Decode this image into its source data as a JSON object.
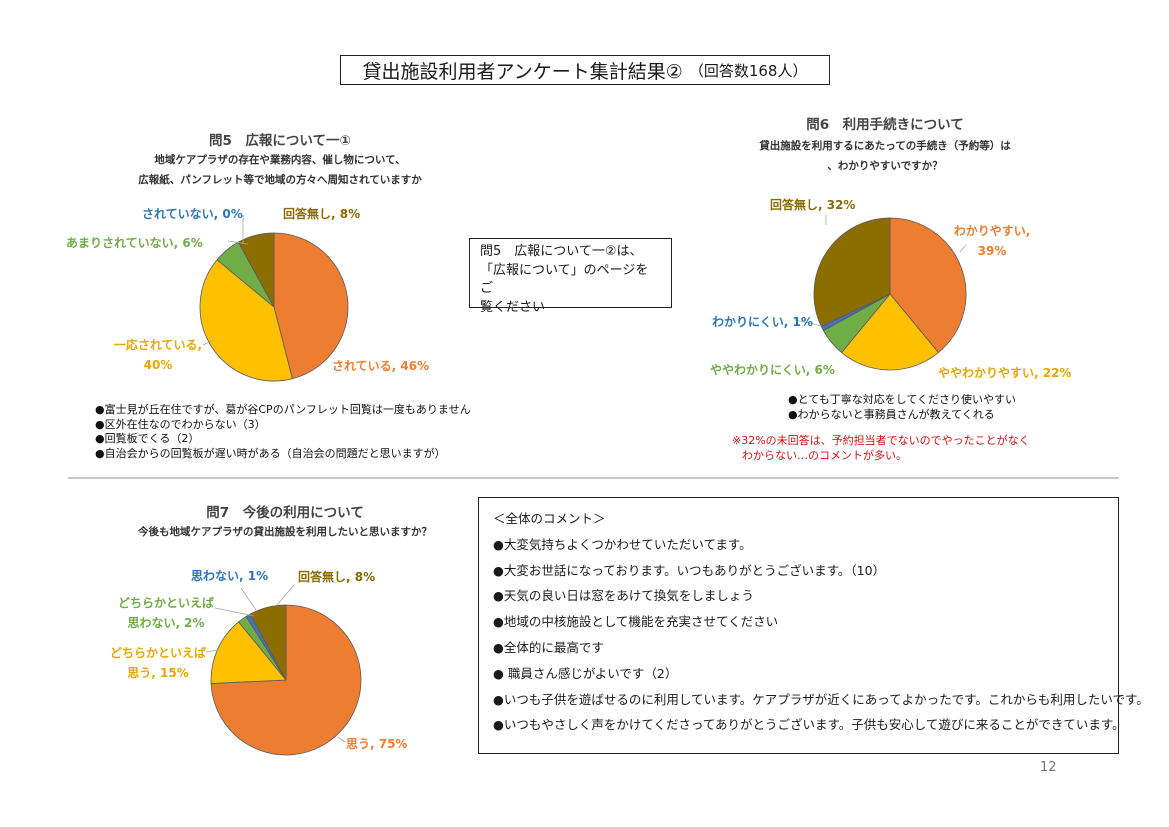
{
  "title": {
    "main": "貸出施設利用者アンケート集計結果②",
    "sub": "（回答数168人）"
  },
  "q5": {
    "title": "問5　広報について一①",
    "desc": [
      "地域ケアプラザの存在や業務内容、催し物について、",
      "広報紙、パンフレット等で地域の方々へ周知されていますか"
    ],
    "labels": {
      "l0": "されている, 46%",
      "l1a": "一応されている,",
      "l1b": "40%",
      "l2": "あまりされていない, 6%",
      "l3": "されていない, 0%",
      "l4": "回答無し, 8%"
    },
    "bullets": [
      "●富士見が丘在住ですが、葛が谷CPのパンフレット回覧は一度もありません",
      "●区外在住なのでわからない（3）",
      "●回覧板でくる（2）",
      "●自治会からの回覧板が遅い時がある（自治会の問題だと思いますが）"
    ]
  },
  "middle_note": [
    "問5　広報について一②は、",
    "「広報について」のページをご",
    "覧ください"
  ],
  "q6": {
    "title": "問6　利用手続きについて",
    "desc": [
      "貸出施設を利用するにあたっての手続き（予約等）は",
      "、わかりやすいですか？"
    ],
    "labels": {
      "l0a": "わかりやすい,",
      "l0b": "39%",
      "l1": "ややわかりやすい, 22%",
      "l2": "ややわかりにくい, 6%",
      "l3": "わかりにくい, 1%",
      "l4": "回答無し, 32%"
    },
    "bullets": [
      "●とても丁寧な対応をしてくださり使いやすい",
      "●わからないと事務員さんが教えてくれる"
    ],
    "note": [
      "※32%の未回答は、予約担当者でないのでやったことがなく",
      "わからない…のコメントが多い。"
    ]
  },
  "q7": {
    "title": "問7　今後の利用について",
    "desc": [
      "今後も地域ケアプラザの貸出施設を利用したいと思いますか？"
    ],
    "labels": {
      "l0": "思う, 75%",
      "l1a": "どちらかといえば",
      "l1b": "思う, 15%",
      "l2a": "どちらかといえば",
      "l2b": "思わない, 2%",
      "l3": "思わない, 1%",
      "l4": "回答無し, 8%"
    }
  },
  "comments": {
    "heading": "＜全体のコメント＞",
    "items": [
      "●大変気持ちよくつかわせていただいてます。",
      "●大変お世話になっております。いつもありがとうございます。（10）",
      "●天気の良い日は窓をあけて換気をしましょう",
      "●地域の中核施設として機能を充実させてください",
      "●全体的に最高です",
      "●  職員さん感じがよいです（2）",
      "●いつも子供を遊ばせるのに利用しています。ケアプラザが近くにあってよかったです。これからも利用したいです。",
      "●いつもやさしく声をかけてくださってありがとうございます。子供も安心して遊びに来ることができています。"
    ]
  },
  "page_number": "12",
  "colors": {
    "orange": "#ED7D31",
    "yellow": "#FFC000",
    "green": "#70AD47",
    "blue": "#4472C4",
    "brown": "#8C6D00"
  },
  "chart_data": [
    {
      "type": "pie",
      "title": "問5　広報について一①",
      "categories": [
        "されている",
        "一応されている",
        "あまりされていない",
        "されていない",
        "回答無し"
      ],
      "values": [
        46,
        40,
        6,
        0,
        8
      ],
      "colors": [
        "#ED7D31",
        "#FFC000",
        "#70AD47",
        "#4472C4",
        "#8C6D00"
      ]
    },
    {
      "type": "pie",
      "title": "問6　利用手続きについて",
      "categories": [
        "わかりやすい",
        "ややわかりやすい",
        "ややわかりにくい",
        "わかりにくい",
        "回答無し"
      ],
      "values": [
        39,
        22,
        6,
        1,
        32
      ],
      "colors": [
        "#ED7D31",
        "#FFC000",
        "#70AD47",
        "#4472C4",
        "#8C6D00"
      ]
    },
    {
      "type": "pie",
      "title": "問7　今後の利用について",
      "categories": [
        "思う",
        "どちらかといえば思う",
        "どちらかといえば思わない",
        "思わない",
        "回答無し"
      ],
      "values": [
        75,
        15,
        2,
        1,
        8
      ],
      "colors": [
        "#ED7D31",
        "#FFC000",
        "#70AD47",
        "#4472C4",
        "#8C6D00"
      ]
    }
  ]
}
